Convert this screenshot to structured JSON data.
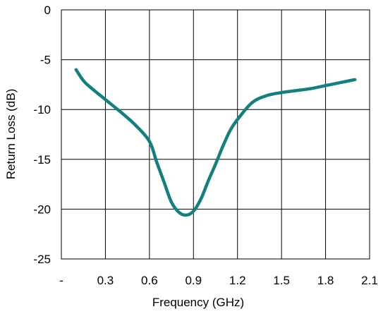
{
  "chart_data": {
    "type": "line",
    "title": "",
    "xlabel": "Frequency (GHz)",
    "ylabel": "Return Loss (dB)",
    "xlim": [
      0,
      2.1
    ],
    "ylim": [
      -25,
      0
    ],
    "x_ticks": [
      0,
      0.3,
      0.6,
      0.9,
      1.2,
      1.5,
      1.8,
      2.1
    ],
    "x_tick_labels": [
      "-",
      "0.3",
      "0.6",
      "0.9",
      "1.2",
      "1.5",
      "1.8",
      "2.1"
    ],
    "y_ticks": [
      0,
      -5,
      -10,
      -15,
      -20,
      -25
    ],
    "y_tick_labels": [
      "0",
      "-5",
      "-10",
      "-15",
      "-20",
      "-25"
    ],
    "grid": true,
    "legend": "none",
    "series": [
      {
        "color": "#138080",
        "x": [
          0.1,
          0.15,
          0.2,
          0.3,
          0.4,
          0.5,
          0.6,
          0.65,
          0.7,
          0.75,
          0.8,
          0.85,
          0.9,
          0.95,
          1.0,
          1.05,
          1.1,
          1.15,
          1.2,
          1.3,
          1.4,
          1.5,
          1.6,
          1.7,
          1.8,
          1.9,
          2.0
        ],
        "y": [
          -6.0,
          -7.1,
          -7.8,
          -9.0,
          -10.2,
          -11.5,
          -13.2,
          -15.3,
          -17.3,
          -19.3,
          -20.3,
          -20.6,
          -20.2,
          -19.0,
          -17.2,
          -15.5,
          -13.7,
          -12.1,
          -11.0,
          -9.3,
          -8.6,
          -8.3,
          -8.1,
          -7.9,
          -7.6,
          -7.3,
          -7.0
        ]
      }
    ]
  }
}
